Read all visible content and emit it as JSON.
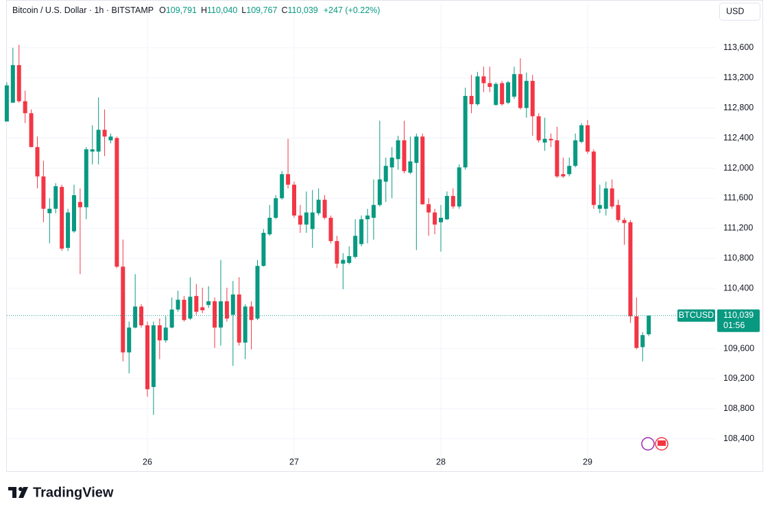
{
  "header": {
    "symbol": "Bitcoin / U.S. Dollar · 1h · BITSTAMP",
    "o_key": "O",
    "o_value": "109,791",
    "h_key": "H",
    "h_value": "110,040",
    "l_key": "L",
    "l_value": "109,767",
    "c_key": "C",
    "c_value": "110,039",
    "change": "+247 (+0.22%)",
    "currency": "USD"
  },
  "footer": {
    "brand": "TradingView"
  },
  "chart_data": {
    "type": "candlestick",
    "up_color": "#089981",
    "down_color": "#f23645",
    "categories": [
      null,
      null,
      null,
      null,
      null,
      null,
      null,
      null,
      null,
      null,
      null,
      null,
      null,
      null,
      null,
      null,
      null,
      null,
      null,
      null,
      null,
      null,
      null,
      "26",
      null,
      null,
      null,
      null,
      null,
      null,
      null,
      null,
      null,
      null,
      null,
      null,
      null,
      null,
      null,
      null,
      null,
      null,
      null,
      null,
      null,
      null,
      null,
      "27",
      null,
      null,
      null,
      null,
      null,
      null,
      null,
      null,
      null,
      null,
      null,
      null,
      null,
      null,
      null,
      null,
      null,
      null,
      null,
      null,
      null,
      null,
      null,
      "28",
      null,
      null,
      null,
      null,
      null,
      null,
      null,
      null,
      null,
      null,
      null,
      null,
      null,
      null,
      null,
      null,
      null,
      null,
      null,
      null,
      null,
      null,
      null,
      "29",
      null,
      null,
      null,
      null,
      null,
      null,
      null,
      null,
      null,
      null
    ],
    "open": [
      112620,
      112870,
      113370,
      112890,
      112730,
      112280,
      111890,
      111400,
      111460,
      111750,
      110940,
      111160,
      111550,
      111480,
      112220,
      112220,
      112510,
      112370,
      112400,
      110690,
      109550,
      109880,
      110160,
      109910,
      109090,
      109910,
      109710,
      109880,
      110120,
      110250,
      110000,
      110300,
      110150,
      110180,
      110230,
      109880,
      110230,
      110050,
      110320,
      109680,
      110160,
      110000,
      110700,
      111120,
      111340,
      111600,
      111920,
      111780,
      111370,
      111250,
      111190,
      111400,
      111580,
      111340,
      111030,
      110730,
      110740,
      110820,
      110990,
      111320,
      111340,
      111510,
      111820,
      112010,
      112120,
      112370,
      111940,
      112070,
      112420,
      111520,
      111410,
      111280,
      111320,
      111630,
      111490,
      112010,
      112960,
      112850,
      113220,
      113130,
      112840,
      113130,
      112870,
      112950,
      113250,
      112800,
      113160,
      112690,
      112340,
      112390,
      112370,
      111920,
      111920,
      112030,
      112350,
      112570,
      112220,
      111460,
      111460,
      111730,
      111510,
      111310,
      111280,
      110030,
      109620,
      109791
    ],
    "high": [
      113140,
      113600,
      113640,
      113030,
      112780,
      112420,
      112100,
      111600,
      111800,
      111780,
      111460,
      111780,
      111730,
      112280,
      112570,
      112940,
      112780,
      112460,
      112420,
      111050,
      109960,
      110590,
      110190,
      109960,
      109960,
      110000,
      110030,
      110280,
      110370,
      110300,
      110550,
      110460,
      110410,
      110430,
      110280,
      110780,
      110410,
      110500,
      110550,
      110190,
      110230,
      110780,
      111190,
      111510,
      111640,
      111960,
      112390,
      111820,
      111510,
      111690,
      111710,
      111730,
      111640,
      111370,
      111100,
      110870,
      110960,
      111320,
      111370,
      111460,
      111850,
      112630,
      112140,
      112280,
      112430,
      112630,
      112420,
      112460,
      112460,
      111600,
      111460,
      111510,
      111690,
      111730,
      112050,
      113070,
      113240,
      113280,
      113350,
      113350,
      113140,
      113160,
      113160,
      113350,
      113460,
      113270,
      113240,
      112730,
      112670,
      112460,
      112550,
      112140,
      112140,
      112460,
      112600,
      112640,
      112250,
      111780,
      111820,
      111850,
      111580,
      111340,
      111310,
      110280,
      109820,
      110040
    ],
    "low": [
      112620,
      112870,
      112870,
      112600,
      112280,
      111730,
      111280,
      111000,
      111400,
      110900,
      110900,
      111140,
      110590,
      111320,
      112050,
      112050,
      112160,
      112330,
      110670,
      109430,
      109270,
      109870,
      109880,
      108960,
      108720,
      109460,
      109680,
      109870,
      110090,
      109960,
      109980,
      110050,
      110070,
      110140,
      109610,
      109640,
      109960,
      109370,
      109640,
      109460,
      109590,
      109980,
      110690,
      111100,
      111320,
      111580,
      111730,
      111340,
      111140,
      111140,
      110940,
      111370,
      111320,
      111000,
      110670,
      110390,
      110720,
      110800,
      110960,
      111000,
      111050,
      111490,
      111550,
      111600,
      111980,
      111930,
      111920,
      110910,
      111510,
      111100,
      111120,
      110890,
      111310,
      111460,
      111460,
      111980,
      112730,
      112830,
      113010,
      113010,
      112830,
      112830,
      112850,
      112920,
      112780,
      112670,
      112430,
      112340,
      112230,
      112280,
      111870,
      111870,
      111890,
      112010,
      112330,
      112190,
      111460,
      111400,
      111370,
      111460,
      111280,
      110980,
      109940,
      109590,
      109430,
      109767
    ],
    "close": [
      113100,
      113370,
      112890,
      112730,
      112280,
      111890,
      111460,
      111460,
      111760,
      110930,
      111410,
      111640,
      111480,
      112250,
      112250,
      112510,
      112420,
      112420,
      110690,
      109550,
      109880,
      110160,
      109910,
      109060,
      109910,
      109710,
      109880,
      110120,
      110250,
      109980,
      110290,
      110090,
      110110,
      110230,
      109880,
      110230,
      110000,
      110320,
      109680,
      110160,
      109980,
      110700,
      111140,
      111340,
      111600,
      111920,
      111780,
      111370,
      111250,
      111410,
      111410,
      111580,
      111340,
      111030,
      110730,
      110780,
      110830,
      111100,
      111320,
      111370,
      111510,
      111850,
      112030,
      112140,
      112370,
      111960,
      112090,
      112420,
      111520,
      111410,
      111250,
      111340,
      111630,
      111490,
      112010,
      112960,
      112850,
      113220,
      113130,
      113080,
      113120,
      112850,
      113140,
      113250,
      112800,
      113160,
      112690,
      112370,
      112390,
      112370,
      111890,
      111890,
      112030,
      112370,
      112570,
      112220,
      111510,
      111510,
      111730,
      111490,
      111310,
      111270,
      110030,
      109610,
      109780,
      110039
    ],
    "ylim": [
      107970,
      114190
    ],
    "yticks": [
      {
        "value": 108400,
        "label": "108,400"
      },
      {
        "value": 108800,
        "label": "108,800"
      },
      {
        "value": 109200,
        "label": "109,200"
      },
      {
        "value": 109600,
        "label": "109,600"
      },
      {
        "value": 110000,
        "label": "110,000"
      },
      {
        "value": 110400,
        "label": "110,400"
      },
      {
        "value": 110800,
        "label": "110,800"
      },
      {
        "value": 111200,
        "label": "111,200"
      },
      {
        "value": 111600,
        "label": "111,600"
      },
      {
        "value": 112000,
        "label": "112,000"
      },
      {
        "value": 112400,
        "label": "112,400"
      },
      {
        "value": 112800,
        "label": "112,800"
      },
      {
        "value": 113200,
        "label": "113,200"
      },
      {
        "value": 113600,
        "label": "113,600"
      }
    ],
    "grid": true,
    "last_price": {
      "value": 110039,
      "label": "110,039",
      "symbol": "BTCUSD",
      "countdown": "01:56"
    }
  }
}
